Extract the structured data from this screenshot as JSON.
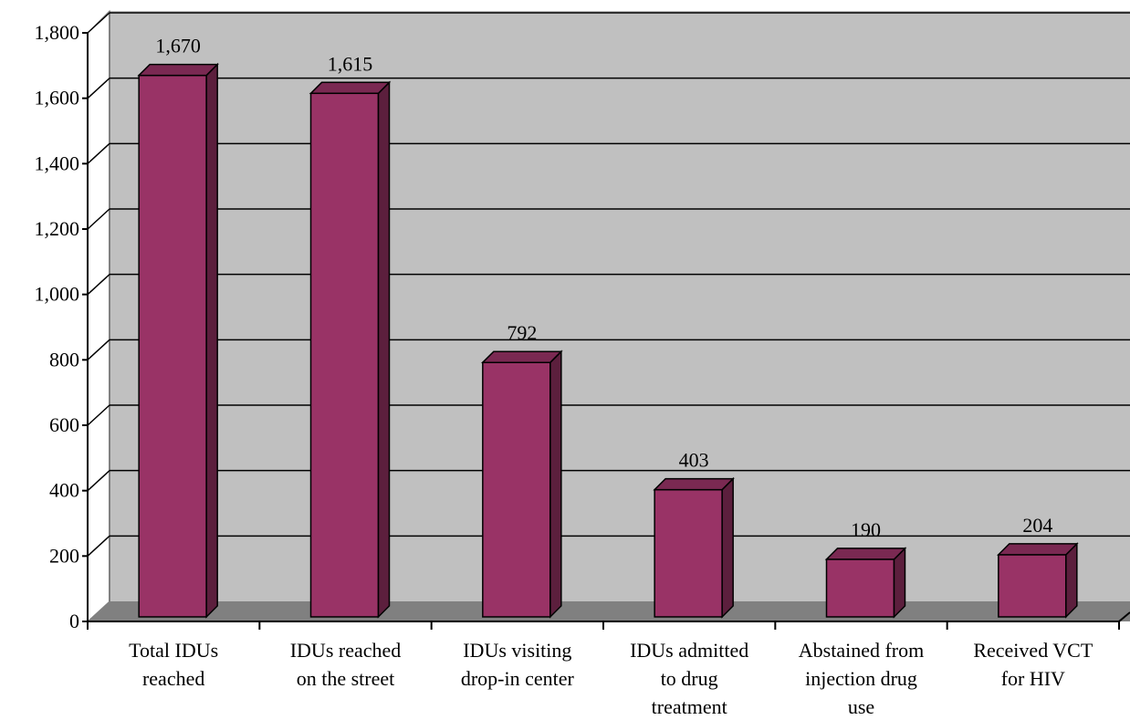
{
  "chart_data": {
    "type": "bar",
    "title": "",
    "xlabel": "",
    "ylabel": "",
    "categories": [
      [
        "Total IDUs",
        "reached"
      ],
      [
        "IDUs reached",
        "on the street"
      ],
      [
        "IDUs visiting",
        "drop-in center"
      ],
      [
        "IDUs admitted",
        "to drug",
        "treatment"
      ],
      [
        "Abstained from",
        "injection drug",
        "use"
      ],
      [
        "Received VCT",
        "for HIV"
      ]
    ],
    "values": [
      1670,
      1615,
      792,
      403,
      190,
      204
    ],
    "value_labels": [
      "1,670",
      "1,615",
      "792",
      "403",
      "190",
      "204"
    ],
    "ylim": [
      0,
      1800
    ],
    "yticks": [
      0,
      200,
      400,
      600,
      800,
      1000,
      1200,
      1400,
      1600,
      1800
    ],
    "ytick_labels": [
      "0",
      "200",
      "400",
      "600",
      "800",
      "1,000",
      "1,200",
      "1,400",
      "1,600",
      "1,800"
    ],
    "grid": true,
    "style": "3d-column",
    "colors": {
      "bar_front": "#993366",
      "bar_side": "#5c1f3d",
      "bar_top": "#7a2952",
      "wall": "#c0c0c0",
      "floor": "#808080",
      "gridline": "#000000"
    }
  }
}
